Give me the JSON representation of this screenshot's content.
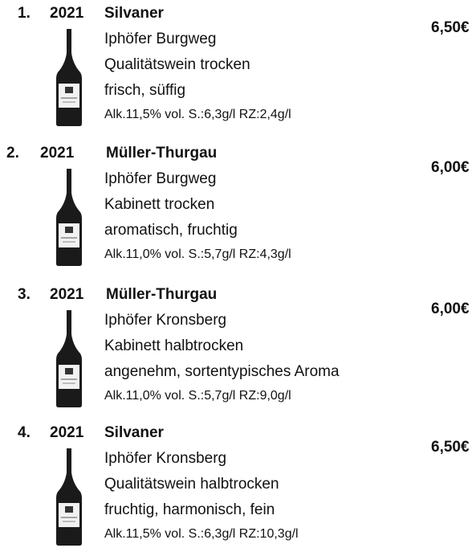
{
  "items": [
    {
      "number": "1.",
      "year": "2021",
      "name": "Silvaner",
      "price": "6,50€",
      "lines": [
        "Iphöfer Burgweg",
        "Qualitätswein trocken",
        "frisch, süffig"
      ],
      "details": "Alk.11,5% vol. S.:6,3g/l RZ:2,4g/l"
    },
    {
      "number": "2.",
      "year": "2021",
      "name": "Müller-Thurgau",
      "price": "6,00€",
      "lines": [
        "Iphöfer Burgweg",
        "Kabinett trocken",
        "aromatisch, fruchtig"
      ],
      "details": "Alk.11,0% vol. S.:5,7g/l RZ:4,3g/l"
    },
    {
      "number": "3.",
      "year": "2021",
      "name": "Müller-Thurgau",
      "price": "6,00€",
      "lines": [
        "Iphöfer Kronsberg",
        "Kabinett halbtrocken",
        "angenehm, sortentypisches Aroma"
      ],
      "details": "Alk.11,0% vol. S.:5,7g/l RZ:9,0g/l"
    },
    {
      "number": "4.",
      "year": "2021",
      "name": "Silvaner",
      "price": "6,50€",
      "lines": [
        "Iphöfer Kronsberg",
        "Qualitätswein halbtrocken",
        "fruchtig, harmonisch, fein"
      ],
      "details": "Alk.11,5% vol. S.:6,3g/l RZ:10,3g/l"
    }
  ]
}
